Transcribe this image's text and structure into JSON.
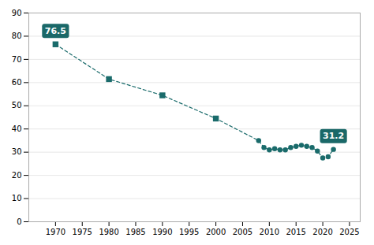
{
  "chart_data": {
    "type": "line",
    "color": "#1a6b6b",
    "series": [
      {
        "type": "line",
        "line_style": "dashed",
        "x": [
          1970,
          1980,
          1990,
          2000,
          2008,
          2009,
          2010,
          2011,
          2012,
          2013,
          2014,
          2015,
          2016,
          2017,
          2018,
          2019,
          2020,
          2021,
          2022
        ],
        "values": [
          76.5,
          61.5,
          54.5,
          44.5,
          35.0,
          32.0,
          31.0,
          31.5,
          31.0,
          31.0,
          32.0,
          32.5,
          33.0,
          32.5,
          32.0,
          30.5,
          27.5,
          28.0,
          31.2
        ]
      },
      {
        "type": "scatter",
        "marker": "square",
        "x": [
          1970,
          1980,
          1990,
          2000
        ],
        "values": [
          76.5,
          61.5,
          54.5,
          44.5
        ]
      },
      {
        "type": "scatter",
        "marker": "circle",
        "x": [
          2008,
          2009,
          2010,
          2011,
          2012,
          2013,
          2014,
          2015,
          2016,
          2017,
          2018,
          2019,
          2020,
          2021,
          2022
        ],
        "values": [
          35.0,
          32.0,
          31.0,
          31.5,
          31.0,
          31.0,
          32.0,
          32.5,
          33.0,
          32.5,
          32.0,
          30.5,
          27.5,
          28.0,
          31.2
        ]
      }
    ],
    "annotations": [
      {
        "text": "76.5",
        "x": 1970,
        "y": 76.5,
        "color": "#1a6868"
      },
      {
        "text": "31.2",
        "x": 2022,
        "y": 31.2,
        "color": "#1a6868"
      }
    ],
    "xlim": [
      1965,
      2027
    ],
    "xticks": [
      1970,
      1975,
      1980,
      1985,
      1990,
      1995,
      2000,
      2005,
      2010,
      2015,
      2020,
      2025
    ],
    "ylim": [
      0,
      90
    ],
    "yticks": [
      0,
      10,
      20,
      30,
      40,
      50,
      60,
      70,
      80,
      90
    ],
    "grid": true
  }
}
